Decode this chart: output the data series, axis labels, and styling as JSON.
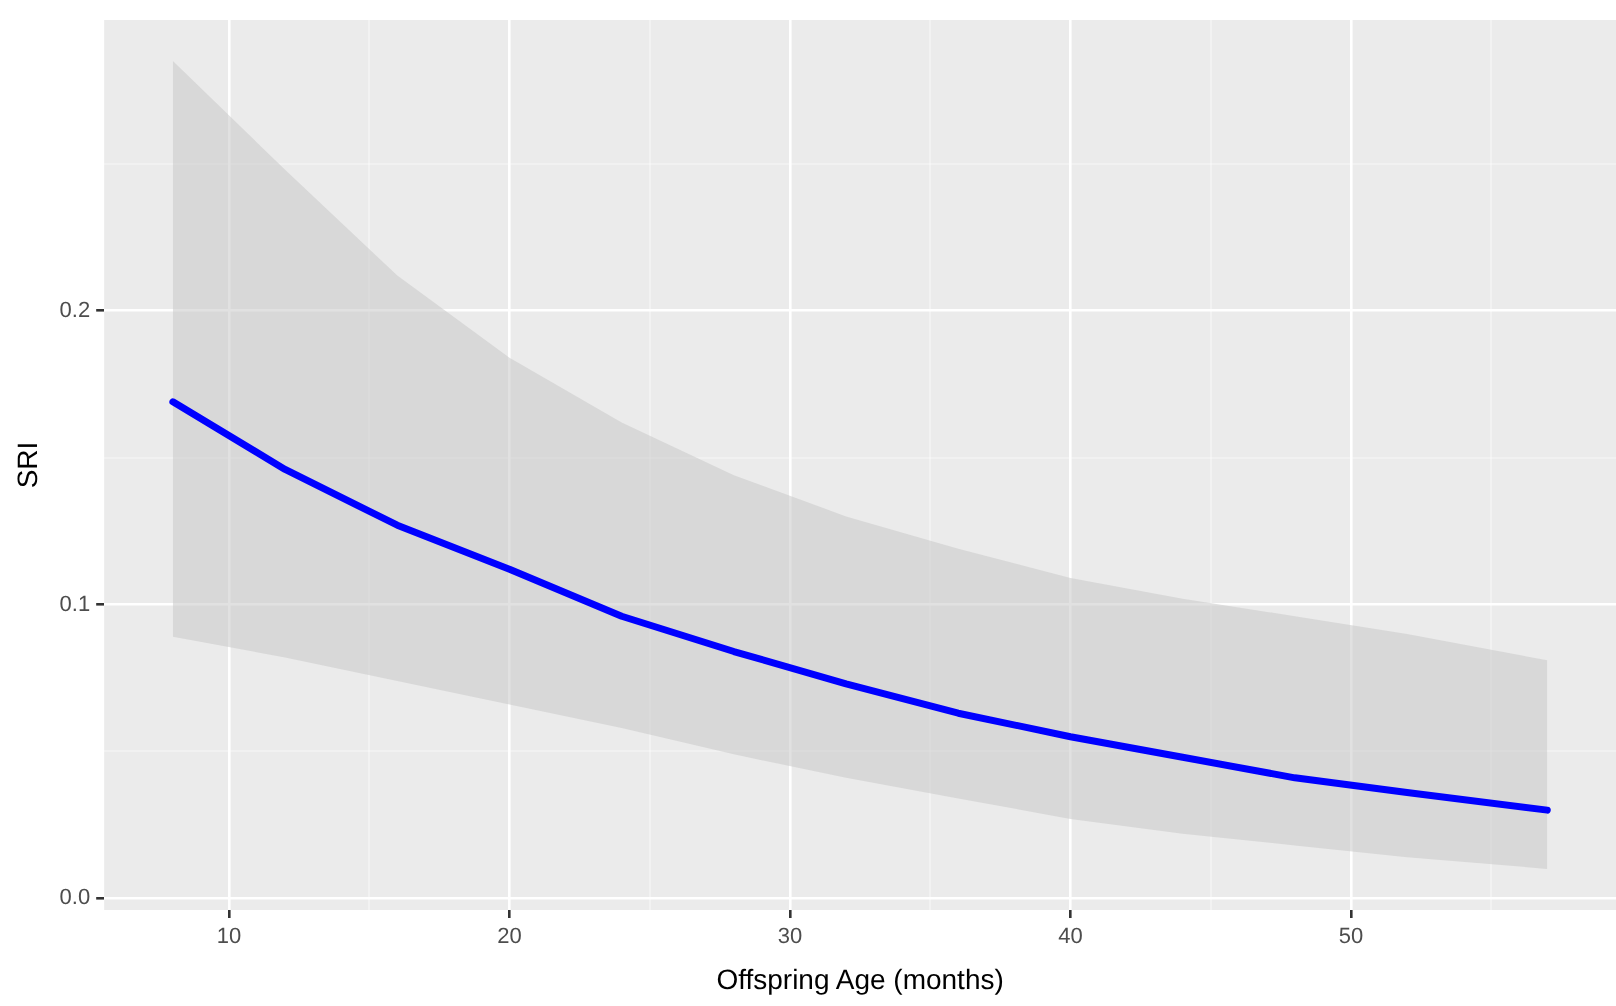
{
  "chart_data": {
    "type": "line",
    "xlabel": "Offspring Age (months)",
    "ylabel": "SRI",
    "x": [
      8,
      12,
      16,
      20,
      24,
      28,
      32,
      36,
      40,
      44,
      48,
      52,
      57
    ],
    "series": [
      {
        "color": "#0000ff",
        "values": [
          0.169,
          0.146,
          0.127,
          0.112,
          0.096,
          0.084,
          0.073,
          0.063,
          0.055,
          0.048,
          0.041,
          0.036,
          0.03
        ],
        "lower": [
          0.089,
          0.082,
          0.074,
          0.066,
          0.058,
          0.049,
          0.041,
          0.034,
          0.027,
          0.022,
          0.018,
          0.014,
          0.01
        ],
        "upper": [
          0.285,
          0.248,
          0.212,
          0.184,
          0.162,
          0.144,
          0.13,
          0.119,
          0.109,
          0.102,
          0.096,
          0.09,
          0.081
        ]
      }
    ],
    "xlim": [
      5.55,
      59.45
    ],
    "xticks": [
      10,
      {
        "value": 15,
        "label": null
      },
      20,
      {
        "value": 25,
        "label": null
      },
      30,
      {
        "value": 35,
        "label": null
      },
      40,
      {
        "value": 45,
        "label": null
      },
      50,
      {
        "value": 55,
        "label": null
      }
    ],
    "ylim": [
      -0.004,
      0.299
    ],
    "yticks": [
      {
        "value": 0,
        "label": "0.0"
      },
      {
        "value": 0.05,
        "label": null
      },
      0.1,
      {
        "value": 0.15,
        "label": null
      },
      0.2,
      {
        "value": 0.25,
        "label": null
      }
    ],
    "grid": true,
    "marker": "none",
    "line_style": "solid"
  }
}
